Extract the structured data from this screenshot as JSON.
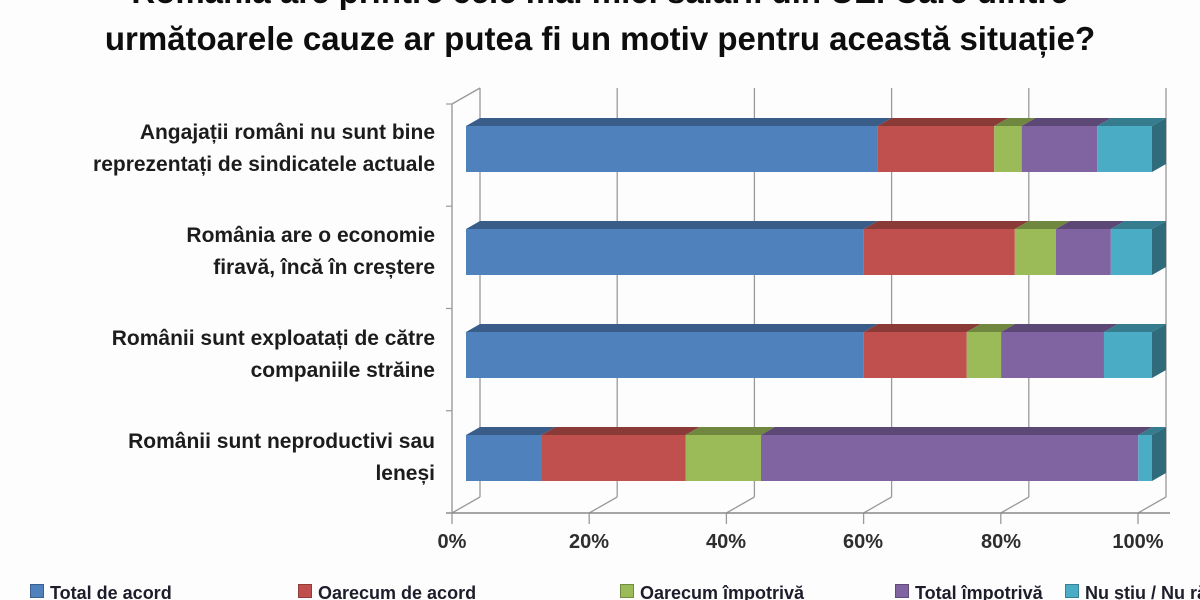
{
  "title": {
    "line1": "România are printre cele mai mici salarii din UE. Care dintre",
    "line2": "următoarele cauze ar putea fi un motiv pentru această situație?"
  },
  "chart_data": {
    "type": "bar",
    "subtype": "horizontal-stacked-3d",
    "title": "România are printre cele mai mici salarii din UE. Care dintre următoarele cauze ar putea fi un motiv pentru această situație?",
    "categories": [
      "Angajații români nu sunt bine\nreprezentați de sindicatele actuale",
      "România are o economie\nfiravă, încă în creștere",
      "Românii sunt exploatați de către\ncompaniile străine",
      "Românii sunt neproductivi sau\nleneși"
    ],
    "series": [
      {
        "name": "Total de acord",
        "color": "#4F81BD",
        "values": [
          60,
          58,
          58,
          11
        ]
      },
      {
        "name": "Oarecum de acord",
        "color": "#C0504D",
        "values": [
          17,
          22,
          15,
          21
        ]
      },
      {
        "name": "Oarecum împotrivă",
        "color": "#9BBB59",
        "values": [
          4,
          6,
          5,
          11
        ]
      },
      {
        "name": "Total împotrivă",
        "color": "#8064A2",
        "values": [
          11,
          8,
          15,
          55
        ]
      },
      {
        "name": "Nu știu / Nu răspund",
        "color": "#4BACC6",
        "values": [
          8,
          6,
          7,
          2
        ]
      }
    ],
    "x_axis": {
      "min": 0,
      "max": 100,
      "unit": "%",
      "ticks": [
        "0%",
        "20%",
        "40%",
        "60%",
        "80%",
        "100%"
      ]
    },
    "grid": true,
    "legend_position": "bottom",
    "grid_color": "#9a9a9a"
  }
}
